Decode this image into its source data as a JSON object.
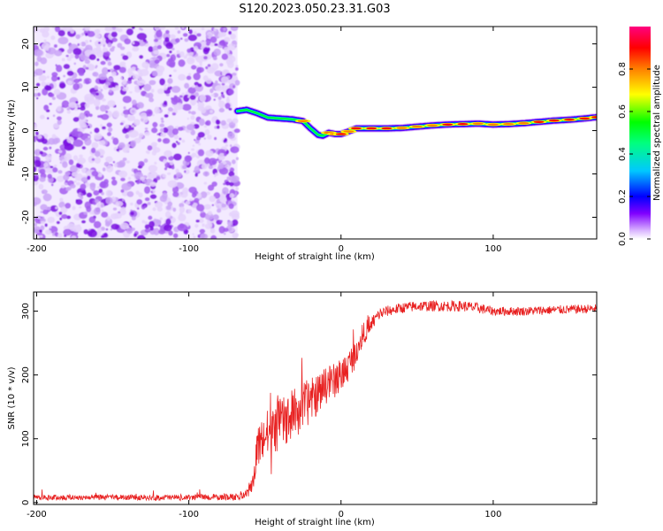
{
  "title": "S120.2023.050.23.31.G03",
  "chart_data": [
    {
      "type": "heatmap",
      "name": "spectrogram",
      "xlabel": "Height of straight line (km)",
      "ylabel": "Frequency (Hz)",
      "xlim": [
        -202,
        168
      ],
      "ylim": [
        -25,
        24
      ],
      "x_ticks": [
        -200,
        -100,
        0,
        100
      ],
      "y_ticks": [
        -20,
        -10,
        0,
        10,
        20
      ],
      "noise_region_x": [
        -202,
        -68
      ],
      "colorbar": {
        "label": "Normalized spectral amplitude",
        "range": [
          0,
          1
        ],
        "ticks": [
          "0.0",
          "0.2",
          "0.4",
          "0.6",
          "0.8"
        ],
        "tick_values": [
          0,
          0.2,
          0.4,
          0.6,
          0.8
        ],
        "colors": [
          "#ffffff",
          "#8000ff",
          "#0000ff",
          "#00c8ff",
          "#00ff00",
          "#ffff00",
          "#ff8000",
          "#ff0000",
          "#ff0080"
        ]
      },
      "ridge": {
        "x": [
          -68,
          -62,
          -55,
          -48,
          -40,
          -32,
          -25,
          -20,
          -15,
          -12,
          -8,
          -4,
          0,
          5,
          10,
          20,
          30,
          40,
          50,
          60,
          70,
          80,
          90,
          100,
          110,
          120,
          130,
          140,
          150,
          160,
          168
        ],
        "frequency": [
          4.5,
          4.8,
          4.0,
          3.0,
          2.8,
          2.6,
          2.2,
          0.5,
          -1.0,
          -1.2,
          -0.5,
          -0.8,
          -0.8,
          -0.2,
          0.5,
          0.5,
          0.5,
          0.6,
          0.9,
          1.2,
          1.4,
          1.5,
          1.6,
          1.4,
          1.5,
          1.7,
          2.0,
          2.3,
          2.5,
          2.8,
          3.1
        ],
        "amplitude": [
          0.35,
          0.5,
          0.6,
          0.55,
          0.65,
          0.7,
          0.75,
          0.7,
          0.6,
          0.65,
          0.75,
          0.8,
          0.85,
          0.8,
          0.82,
          0.85,
          0.85,
          0.8,
          0.75,
          0.8,
          0.85,
          0.85,
          0.8,
          0.75,
          0.75,
          0.8,
          0.85,
          0.9,
          0.9,
          0.88,
          0.85
        ]
      }
    },
    {
      "type": "line",
      "name": "snr",
      "xlabel": "Height of straight line (km)",
      "ylabel": "SNR (10 * v/v)",
      "xlim": [
        -202,
        168
      ],
      "ylim": [
        -3,
        330
      ],
      "x_ticks": [
        -200,
        -100,
        0,
        100
      ],
      "y_ticks": [
        0,
        100,
        200,
        300
      ],
      "color": "#e82020",
      "envelope": {
        "x": [
          -202,
          -100,
          -70,
          -62,
          -58,
          -55,
          -50,
          -45,
          -40,
          -35,
          -30,
          -25,
          -20,
          -15,
          -10,
          -5,
          0,
          5,
          10,
          15,
          20,
          25,
          30,
          40,
          50,
          60,
          80,
          90,
          100,
          120,
          140,
          168
        ],
        "mean": [
          8,
          8,
          9,
          12,
          30,
          85,
          105,
          110,
          125,
          130,
          140,
          150,
          160,
          170,
          185,
          190,
          200,
          215,
          240,
          265,
          280,
          295,
          300,
          305,
          308,
          308,
          308,
          305,
          300,
          300,
          302,
          304
        ],
        "noise": [
          5,
          5,
          6,
          8,
          20,
          50,
          55,
          60,
          55,
          55,
          60,
          55,
          50,
          45,
          45,
          40,
          40,
          35,
          30,
          25,
          18,
          15,
          12,
          12,
          12,
          12,
          12,
          12,
          10,
          10,
          10,
          10
        ]
      }
    }
  ]
}
